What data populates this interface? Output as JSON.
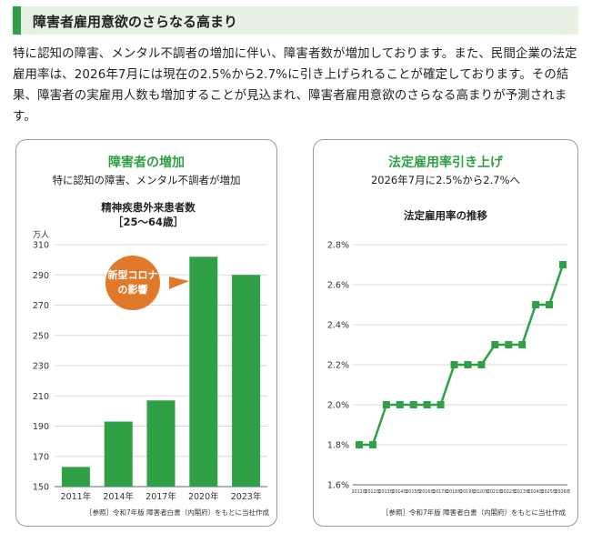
{
  "header": {
    "title": "障害者雇用意欲のさらなる高まり"
  },
  "intro": "特に認知の障害、メンタル不調者の増加に伴い、障害者数が増加しております。また、民間企業の法定雇用率は、2026年7月には現在の2.5%から2.7%に引き上げられることが確定しております。その結果、障害者の実雇用人数も増加することが見込まれ、障害者雇用意欲のさらなる高まりが予測されます。",
  "left_card": {
    "title": "障害者の増加",
    "subtitle": "特に認知の障害、メンタル不調者が増加",
    "callout": [
      "新型コロナ",
      "の影響"
    ],
    "source": "［参照］令和7年版 障害者白書（内閣府）をもとに当社作成"
  },
  "right_card": {
    "title": "法定雇用率引き上げ",
    "subtitle": "2026年7月に2.5%から2.7%へ",
    "source": "［参照］令和7年版 障害者白書（内閣府）をもとに当社作成"
  },
  "colors": {
    "accent": "#2fa046",
    "callout": "#e07a2a",
    "header_bg": "#e9f1e4"
  },
  "chart_data": [
    {
      "type": "bar",
      "title": "精神疾患外来患者数",
      "subtitle": "［25～64歳］",
      "ylabel": "万人",
      "xlabel": "",
      "ylim": [
        150,
        310
      ],
      "yticks": [
        150,
        170,
        190,
        210,
        230,
        250,
        270,
        290,
        310
      ],
      "categories": [
        "2011年",
        "2014年",
        "2017年",
        "2020年",
        "2023年"
      ],
      "values": [
        163,
        193,
        207,
        302,
        290
      ]
    },
    {
      "type": "line",
      "title": "法定雇用率の推移",
      "xlabel": "",
      "ylabel": "",
      "ylim": [
        1.6,
        2.8
      ],
      "yticks": [
        "1.6%",
        "1.8%",
        "2.0%",
        "2.2%",
        "2.4%",
        "2.6%",
        "2.8%"
      ],
      "x": [
        "2011年",
        "2012年",
        "2013年",
        "2014年",
        "2015年",
        "2016年",
        "2017年",
        "2018年",
        "2019年",
        "2020年",
        "2021年",
        "2022年",
        "2023年",
        "2024年",
        "2025年",
        "2026年"
      ],
      "values": [
        1.8,
        1.8,
        2.0,
        2.0,
        2.0,
        2.0,
        2.0,
        2.2,
        2.2,
        2.2,
        2.3,
        2.3,
        2.3,
        2.5,
        2.5,
        2.7
      ]
    }
  ]
}
